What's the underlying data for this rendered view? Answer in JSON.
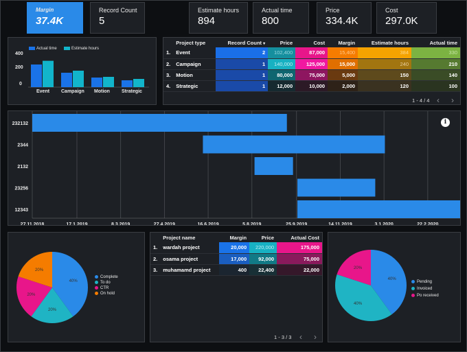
{
  "kpis": {
    "margin": {
      "label": "Margin",
      "value": "37.4K"
    },
    "record_count": {
      "label": "Record Count",
      "value": "5"
    },
    "estimate_hours": {
      "label": "Estimate hours",
      "value": "894"
    },
    "actual_time": {
      "label": "Actual time",
      "value": "800"
    },
    "price": {
      "label": "Price",
      "value": "334.4K"
    },
    "cost": {
      "label": "Cost",
      "value": "297.0K"
    }
  },
  "colors": {
    "accent": "#2a8ae8",
    "teal": "#1fb4c4",
    "magenta": "#e8168a",
    "orange": "#f57c00"
  },
  "bar_chart": {
    "legend": [
      "Actual time",
      "Estimate hours"
    ],
    "yticks": [
      "400",
      "200",
      "0"
    ]
  },
  "project_table": {
    "headers": [
      "Project type",
      "Record Count",
      "Price",
      "Cost",
      "Margin",
      "Estimate hours",
      "Actual time"
    ],
    "sort_icon": "caret-down-icon",
    "rows": [
      {
        "idx": "1.",
        "type": "Event",
        "count": "2",
        "price": "102,400",
        "cost": "87,000",
        "margin": "15,400",
        "est": "384",
        "act": "330"
      },
      {
        "idx": "2.",
        "type": "Campaign",
        "count": "1",
        "price": "140,000",
        "cost": "125,000",
        "margin": "15,000",
        "est": "240",
        "act": "210"
      },
      {
        "idx": "3.",
        "type": "Motion",
        "count": "1",
        "price": "80,000",
        "cost": "75,000",
        "margin": "5,000",
        "est": "150",
        "act": "140"
      },
      {
        "idx": "4.",
        "type": "Strategic",
        "count": "1",
        "price": "12,000",
        "cost": "10,000",
        "margin": "2,000",
        "est": "120",
        "act": "100"
      }
    ],
    "pager": "1 - 4 / 4"
  },
  "timeline": {
    "info_icon": "info-icon",
    "dates": [
      "27.11.2018",
      "17.1.2019",
      "8.3.2019",
      "27.4.2019",
      "16.6.2019",
      "5.8.2019",
      "25.9.2019",
      "14.11.2019",
      "3.1.2020",
      "22.2.2020"
    ]
  },
  "pie_status": {
    "legend": [
      "Complete",
      "To do",
      "CTR",
      "On hold"
    ]
  },
  "project_names_table": {
    "headers": [
      "Project name",
      "Margin",
      "Price",
      "Actual Cost"
    ],
    "rows": [
      {
        "idx": "1.",
        "name": "wardah project",
        "margin": "20,000",
        "price": "220,000",
        "cost": "175,000"
      },
      {
        "idx": "2.",
        "name": "osama project",
        "margin": "17,000",
        "price": "92,000",
        "cost": "75,000"
      },
      {
        "idx": "3.",
        "name": "muhamamd project",
        "margin": "400",
        "price": "22,400",
        "cost": "22,000"
      }
    ],
    "pager": "1 - 3 / 3"
  },
  "pie_payment": {
    "legend": [
      "Pending",
      "Invoiced",
      "Po received"
    ]
  },
  "chart_data": [
    {
      "type": "bar",
      "categories": [
        "Event",
        "Campaign",
        "Motion",
        "Strategic"
      ],
      "series": [
        {
          "name": "Actual time",
          "values": [
            330,
            210,
            140,
            100
          ]
        },
        {
          "name": "Estimate hours",
          "values": [
            384,
            240,
            150,
            120
          ]
        }
      ],
      "ylim": [
        0,
        500
      ],
      "yticks": [
        0,
        200,
        400
      ],
      "legend": "top",
      "colors": [
        "#1a73e8",
        "#12b5cb"
      ]
    },
    {
      "type": "bar",
      "orientation": "horizontal-gantt",
      "categories": [
        "232132",
        "2344",
        "2132",
        "23256",
        "12343"
      ],
      "start": [
        "2018-11-27",
        "2019-06-10",
        "2019-08-08",
        "2019-09-26",
        "2019-09-26"
      ],
      "end": [
        "2019-09-14",
        "2020-01-04",
        "2019-09-21",
        "2019-12-24",
        "2020-03-30"
      ],
      "xticks": [
        "27.11.2018",
        "17.1.2019",
        "8.3.2019",
        "27.4.2019",
        "16.6.2019",
        "5.8.2019",
        "25.9.2019",
        "14.11.2019",
        "3.1.2020",
        "22.2.2020"
      ],
      "xlim": [
        "2018-11-27",
        "2020-03-30"
      ],
      "grid": true,
      "color": "#2a8ae8"
    },
    {
      "type": "pie",
      "labels": [
        "Complete",
        "To do",
        "CTR",
        "On hold"
      ],
      "values": [
        40,
        20,
        20,
        20
      ],
      "slice_labels": [
        "40%",
        "20%",
        "20%",
        "20%"
      ],
      "colors": [
        "#2a8ae8",
        "#1fb4c4",
        "#e8168a",
        "#f57c00"
      ],
      "legend": "right"
    },
    {
      "type": "pie",
      "labels": [
        "Pending",
        "Invoiced",
        "Po received"
      ],
      "values": [
        40,
        40,
        20
      ],
      "slice_labels": [
        "40%",
        "40%",
        "20%"
      ],
      "colors": [
        "#2a8ae8",
        "#1fb4c4",
        "#e8168a"
      ],
      "legend": "right"
    }
  ]
}
